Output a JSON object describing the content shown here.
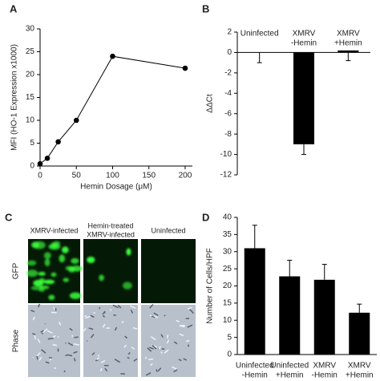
{
  "chart_data": [
    {
      "type": "line",
      "panel": "A",
      "x_label": "Hemin Dosage (μM)",
      "y_label": "MFI (HO-1 Expression x1000)",
      "x": [
        0,
        10,
        25,
        50,
        100,
        200
      ],
      "values": [
        0.5,
        1.7,
        5.3,
        10,
        24,
        21.4
      ],
      "color": "#000000",
      "xlim": [
        0,
        210
      ],
      "xticks": [
        0,
        50,
        100,
        150,
        200
      ],
      "ylim": [
        0,
        30
      ],
      "yticks": [
        0,
        5,
        10,
        15,
        20,
        25,
        30
      ]
    },
    {
      "type": "bar",
      "panel": "B",
      "y_label": "ΔΔCt",
      "category_position": "top",
      "error_side": "lower",
      "categories": [
        [
          "Uninfected"
        ],
        [
          "XMRV",
          "-Hemin"
        ],
        [
          "XMRV",
          "+Hemin"
        ]
      ],
      "values": [
        0,
        -9,
        0.2
      ],
      "errors": [
        1,
        1,
        1
      ],
      "color": "#000000",
      "ylim": [
        -12,
        2
      ],
      "yticks": [
        -12,
        -10,
        -8,
        -6,
        -4,
        -2,
        0,
        2
      ]
    },
    {
      "type": "bar",
      "panel": "D",
      "y_label": "Number of Cells/HPF",
      "category_position": "bottom",
      "error_side": "upper",
      "categories": [
        [
          "Uninfected",
          "-Hemin"
        ],
        [
          "Uninfected",
          "+Hemin"
        ],
        [
          "XMRV",
          "-Hemin"
        ],
        [
          "XMRV",
          "+Hemin"
        ]
      ],
      "values": [
        31,
        22.8,
        21.8,
        12.2
      ],
      "errors": [
        6.7,
        4.7,
        4.5,
        2.5
      ],
      "color": "#000000",
      "ylim": [
        0,
        40
      ],
      "yticks": [
        0,
        5,
        10,
        15,
        20,
        25,
        30,
        35,
        40
      ]
    }
  ],
  "panel_c": {
    "panel": "C",
    "columns": [
      [
        "XMRV-infected"
      ],
      [
        "Hemin-treated",
        "XMRV-infected"
      ],
      [
        "Uninfected"
      ]
    ],
    "rows": [
      "GFP",
      "Phase"
    ]
  }
}
